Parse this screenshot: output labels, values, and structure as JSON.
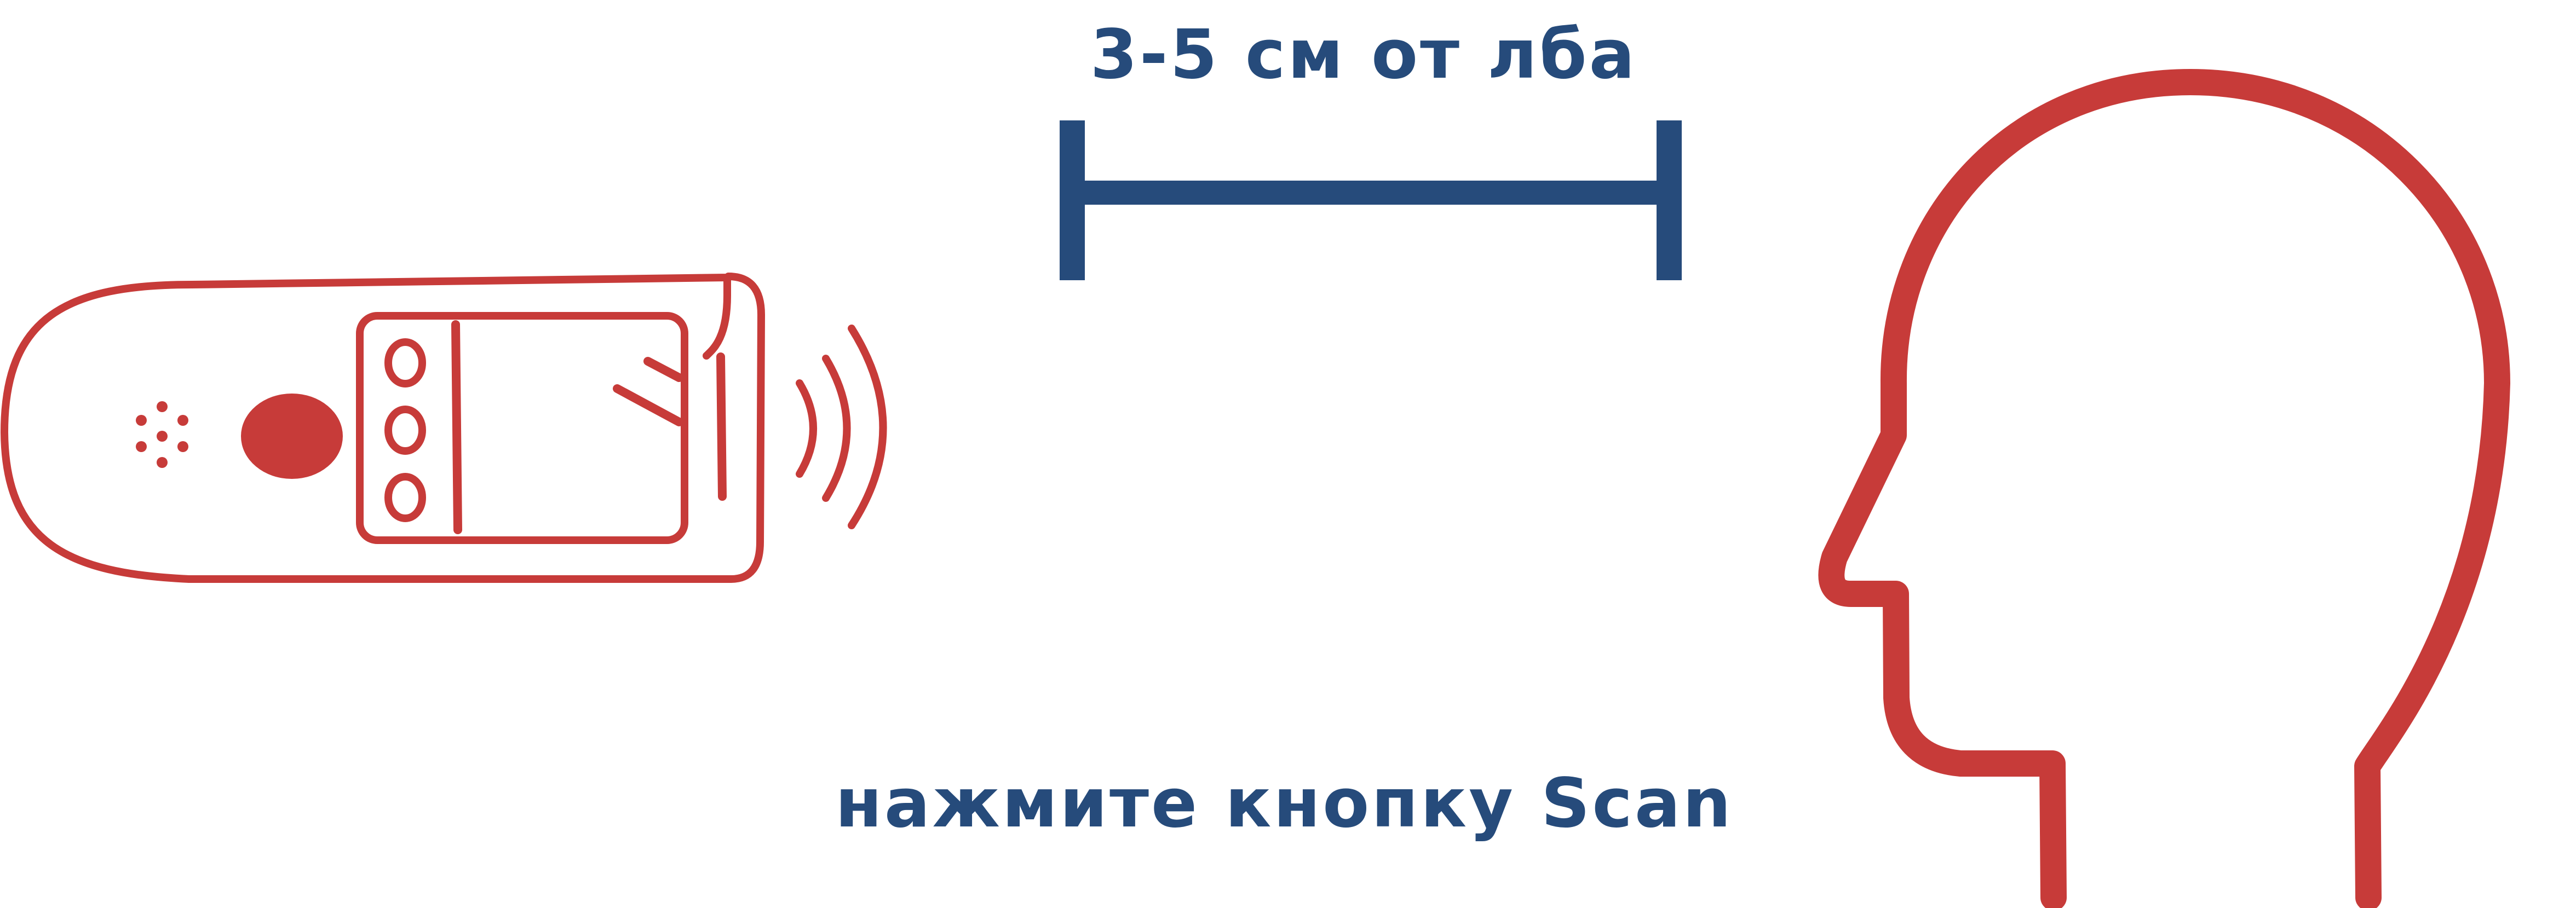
{
  "distance_label": "3-5 см от лба",
  "instruction": "нажмите кнопку Scan",
  "colors": {
    "accent": "#c73b39",
    "primary": "#264b7b",
    "background": "#ffffff"
  },
  "icons": {
    "device": "thermometer-icon",
    "head": "head-profile-icon",
    "waves": "signal-waves-icon",
    "ruler": "distance-bar-icon"
  }
}
